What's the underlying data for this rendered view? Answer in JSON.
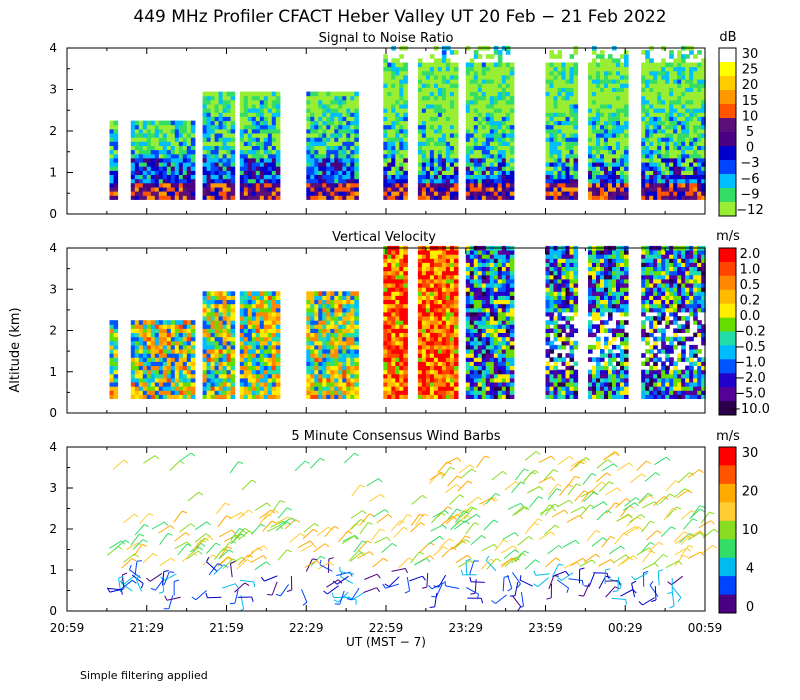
{
  "title": "449 MHz Profiler CFACT Heber Valley UT 20 Feb − 21 Feb 2022",
  "ylabel": "Altitude (km)",
  "xlabel": "UT  (MST − 7)",
  "footnote": "Simple filtering applied",
  "x_ticks": [
    "20:59",
    "21:29",
    "21:59",
    "22:29",
    "22:59",
    "23:29",
    "23:59",
    "00:29",
    "00:59"
  ],
  "panels": [
    {
      "title": "Signal to Noise Ratio",
      "unit": "dB",
      "y_ticks": [
        "0",
        "1",
        "2",
        "3",
        "4"
      ],
      "colorbar_labels": [
        "30",
        "25",
        "20",
        "15",
        "10",
        "5",
        "0",
        "−3",
        "−6",
        "−9",
        "−12"
      ],
      "colorbar_colors": [
        "#ffffff",
        "#ffff00",
        "#ffcc00",
        "#ff9900",
        "#ff5500",
        "#5a0f7a",
        "#4b0082",
        "#0000cd",
        "#0044ff",
        "#00bfff",
        "#33dd66",
        "#99ee33"
      ]
    },
    {
      "title": "Vertical Velocity",
      "unit": "m/s",
      "y_ticks": [
        "0",
        "1",
        "2",
        "3",
        "4"
      ],
      "colorbar_labels": [
        "2.0",
        "1.0",
        "0.5",
        "0.2",
        "0.0",
        "−0.2",
        "−0.5",
        "−1.0",
        "−2.0",
        "−5.0",
        "−10.0"
      ],
      "colorbar_colors": [
        "#ff0000",
        "#ff4400",
        "#ff8800",
        "#ffbb00",
        "#ffee00",
        "#66dd00",
        "#22ddaa",
        "#00bbff",
        "#0055ff",
        "#2200cc",
        "#550099",
        "#2a004a"
      ]
    },
    {
      "title": "5 Minute Consensus Wind Barbs",
      "unit": "m/s",
      "y_ticks": [
        "0",
        "1",
        "2",
        "3",
        "4"
      ],
      "colorbar_labels": [
        "30",
        "20",
        "10",
        "4",
        "0"
      ],
      "colorbar_colors": [
        "#ff0000",
        "#ff5500",
        "#ffaa00",
        "#ffcc33",
        "#88dd22",
        "#33dd66",
        "#00bbee",
        "#0044ff",
        "#4b0082"
      ]
    }
  ],
  "chart_data": [
    {
      "type": "heatmap",
      "title": "Signal to Noise Ratio",
      "x_range": [
        "20:59",
        "00:59"
      ],
      "ylim": [
        0,
        4
      ],
      "colorbar_unit": "dB",
      "colorbar_range": [
        -12,
        30
      ],
      "data_segments_ut": [
        [
          "21:15",
          "21:17"
        ],
        [
          "21:23",
          "21:47"
        ],
        [
          "21:50",
          "22:02"
        ],
        [
          "22:04",
          "22:19"
        ],
        [
          "22:29",
          "22:48"
        ],
        [
          "22:58",
          "23:07"
        ],
        [
          "23:11",
          "23:25"
        ],
        [
          "23:29",
          "23:47"
        ],
        [
          "23:59",
          "24:10"
        ],
        [
          "24:15",
          "24:30"
        ],
        [
          "24:35",
          "24:59"
        ]
      ],
      "height_range_km": [
        0.35,
        4.0
      ]
    },
    {
      "type": "heatmap",
      "title": "Vertical Velocity",
      "x_range": [
        "20:59",
        "00:59"
      ],
      "ylim": [
        0,
        4
      ],
      "colorbar_unit": "m/s",
      "colorbar_range": [
        -10.0,
        2.0
      ]
    },
    {
      "type": "scatter",
      "title": "5 Minute Consensus Wind Barbs",
      "x_range": [
        "20:59",
        "00:59"
      ],
      "ylim": [
        0,
        4
      ],
      "colorbar_unit": "m/s",
      "colorbar_range": [
        0,
        30
      ]
    }
  ]
}
